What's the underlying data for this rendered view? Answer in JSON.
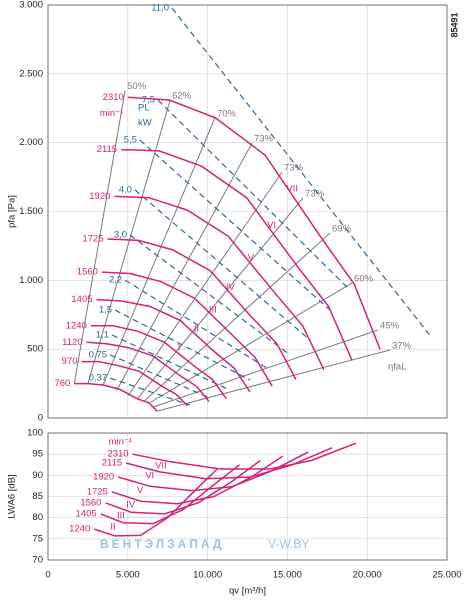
{
  "drawing_number": "85491",
  "watermark": [
    "ВЕНТЭЛЗАПАД",
    "V-W.BY"
  ],
  "chart_data": [
    {
      "type": "line",
      "y_label": "pfa [Pa]",
      "xlim": [
        0,
        25000
      ],
      "ylim": [
        0,
        3000
      ],
      "xticks": [
        0,
        5000,
        10000,
        15000,
        20000,
        25000
      ],
      "yticks": [
        0,
        500,
        {
          "value": 1000,
          "label": "1.000"
        },
        {
          "value": 1500,
          "label": "1.500"
        },
        {
          "value": 2000,
          "label": "2.000"
        },
        {
          "value": 2500,
          "label": "2.500"
        },
        {
          "value": 3000,
          "label": "3.000"
        }
      ],
      "grid": true,
      "speed_unit": "min⁻¹",
      "power_unit": [
        "PL",
        "kW"
      ],
      "efficiency_symbol": "ηfaL",
      "speed_color": "#d4217b",
      "power_color": "#2d6a96",
      "efficiency_color": "#7a7a7a",
      "series": [
        {
          "name": "2310",
          "mark": "VII",
          "x": [
            5000,
            7600,
            10500,
            13600,
            17000,
            19200,
            20800
          ],
          "values": [
            2330,
            2310,
            2180,
            1910,
            1330,
            970,
            500
          ]
        },
        {
          "name": "2115",
          "mark": "VI",
          "x": [
            4580,
            6960,
            9610,
            12450,
            15570,
            17580,
            19040
          ],
          "values": [
            1950,
            1940,
            1830,
            1600,
            1110,
            810,
            420
          ]
        },
        {
          "name": "1920",
          "mark": "V",
          "x": [
            4160,
            6320,
            8730,
            11300,
            14130,
            15960,
            17290
          ],
          "values": [
            1610,
            1600,
            1510,
            1320,
            920,
            670,
            350
          ]
        },
        {
          "name": "1725",
          "mark": "IV",
          "x": [
            3730,
            5680,
            7840,
            10160,
            12700,
            14340,
            15530
          ],
          "values": [
            1300,
            1290,
            1220,
            1070,
            740,
            540,
            280
          ]
        },
        {
          "name": "1560",
          "mark": "III",
          "x": [
            3380,
            5130,
            7090,
            9180,
            11480,
            12970,
            14050
          ],
          "values": [
            1060,
            1050,
            990,
            870,
            610,
            440,
            230
          ]
        },
        {
          "name": "1405",
          "mark": "II",
          "x": [
            3040,
            4620,
            6390,
            8270,
            10340,
            11680,
            12650
          ],
          "values": [
            860,
            850,
            810,
            710,
            490,
            360,
            190
          ]
        },
        {
          "name": "1240",
          "mark": "I",
          "x": [
            2680,
            4080,
            5640,
            7300,
            9130,
            10310,
            11170
          ],
          "values": [
            670,
            670,
            630,
            550,
            380,
            280,
            140
          ]
        },
        {
          "name": "1120",
          "x": [
            2420,
            3680,
            5090,
            6590,
            8240,
            9310,
            10080
          ],
          "values": [
            550,
            540,
            510,
            450,
            310,
            230,
            120
          ]
        },
        {
          "name": "970",
          "x": [
            2100,
            3190,
            4410,
            5710,
            7140,
            8060,
            8730
          ],
          "values": [
            410,
            410,
            380,
            340,
            230,
            170,
            90
          ]
        },
        {
          "name": "760",
          "x": [
            1650,
            2500,
            3450,
            4470,
            5590,
            6320,
            6840
          ],
          "values": [
            250,
            250,
            240,
            210,
            140,
            110,
            50
          ]
        }
      ],
      "power_lines": [
        {
          "name": "11,0",
          "x": [
            7770,
            24060
          ],
          "values": [
            2977,
            581
          ]
        },
        {
          "name": "7,5",
          "x": [
            6890,
            18920
          ],
          "values": [
            2309,
            930
          ]
        },
        {
          "name": "5,5",
          "x": [
            5760,
            17670
          ],
          "values": [
            2019,
            784
          ]
        },
        {
          "name": "4,0",
          "x": [
            5450,
            16420
          ],
          "values": [
            1656,
            566
          ]
        },
        {
          "name": "3,0",
          "x": [
            5140,
            15160
          ],
          "values": [
            1329,
            458
          ]
        },
        {
          "name": "2,2",
          "x": [
            4830,
            13910
          ],
          "values": [
            1002,
            349
          ]
        },
        {
          "name": "1,5",
          "x": [
            4200,
            12660
          ],
          "values": [
            784,
            276
          ]
        },
        {
          "name": "1,1",
          "x": [
            4010,
            11400
          ],
          "values": [
            603,
            203
          ]
        },
        {
          "name": "0,75",
          "x": [
            3890,
            10150
          ],
          "values": [
            458,
            145
          ]
        },
        {
          "name": "0,37",
          "x": [
            3890,
            8900
          ],
          "values": [
            290,
            94
          ]
        }
      ],
      "efficiency_lines": [
        {
          "name": "50%",
          "x": [
            1650,
            4830
          ],
          "values": [
            250,
            2380
          ]
        },
        {
          "name": "62%",
          "x": [
            2500,
            7650
          ],
          "values": [
            250,
            2310
          ]
        },
        {
          "name": "70%",
          "x": [
            3450,
            10460
          ],
          "values": [
            240,
            2180
          ]
        },
        {
          "name": "73%",
          "x": [
            4300,
            12780
          ],
          "values": [
            200,
            1997
          ]
        },
        {
          "name": "73%",
          "x": [
            5000,
            14660
          ],
          "values": [
            160,
            1786
          ]
        },
        {
          "name": "73%",
          "x": [
            5600,
            15980
          ],
          "values": [
            140,
            1598
          ]
        },
        {
          "name": "69%",
          "x": [
            6000,
            17670
          ],
          "values": [
            120,
            1343
          ]
        },
        {
          "name": "60%",
          "x": [
            6300,
            19050
          ],
          "values": [
            105,
            980
          ]
        },
        {
          "name": "45%",
          "x": [
            6600,
            20680
          ],
          "values": [
            80,
            639
          ]
        },
        {
          "name": "37%",
          "x": [
            6840,
            21430
          ],
          "values": [
            50,
            494
          ]
        }
      ]
    },
    {
      "type": "line",
      "y_label": "LWA6 [dB]",
      "x_label": "qv [m³/h]",
      "xlim": [
        0,
        25000
      ],
      "ylim": [
        70,
        100
      ],
      "xticks": [
        0,
        {
          "value": 5000,
          "label": "5.000"
        },
        {
          "value": 10000,
          "label": "10.000"
        },
        {
          "value": 15000,
          "label": "15.000"
        },
        {
          "value": 20000,
          "label": "20.000"
        },
        {
          "value": 25000,
          "label": "25.000"
        }
      ],
      "yticks": [
        70,
        75,
        80,
        85,
        90,
        95,
        100
      ],
      "grid": true,
      "speed_unit": "min⁻¹",
      "speed_color": "#d4217b",
      "series": [
        {
          "name": "2310",
          "mark": "VII",
          "x": [
            5300,
            7700,
            10800,
            13900,
            16500,
            19300
          ],
          "values": [
            95,
            93.2,
            91.5,
            91.5,
            93.5,
            97.6
          ]
        },
        {
          "name": "2115",
          "mark": "VI",
          "x": [
            4900,
            7000,
            9900,
            12700,
            15300,
            17800
          ],
          "values": [
            92.9,
            90.8,
            89.2,
            89.6,
            92.5,
            96.5
          ]
        },
        {
          "name": "1920",
          "mark": "V",
          "x": [
            4400,
            6400,
            9000,
            11500,
            14000,
            16300
          ],
          "values": [
            89.6,
            87.4,
            86.4,
            87.3,
            91,
            95.5
          ]
        },
        {
          "name": "1725",
          "mark": "IV",
          "x": [
            4000,
            5800,
            8100,
            10400,
            12700,
            14700
          ],
          "values": [
            86.1,
            83.9,
            83.3,
            85,
            89.5,
            94.5
          ]
        },
        {
          "name": "1560",
          "mark": "III",
          "x": [
            3600,
            5200,
            7300,
            9400,
            11500,
            13300
          ],
          "values": [
            83.5,
            81.3,
            80.9,
            83.5,
            88.5,
            93.5
          ]
        },
        {
          "name": "1405",
          "mark": "II",
          "x": [
            3300,
            4700,
            6600,
            8500,
            10300,
            12000
          ],
          "values": [
            80.9,
            78.8,
            78.6,
            82,
            87.5,
            92.5
          ]
        },
        {
          "name": "1240",
          "x": [
            2900,
            4200,
            5800,
            7500,
            9100,
            10600
          ],
          "values": [
            77.3,
            75.7,
            75.8,
            80,
            86,
            91.5
          ]
        }
      ]
    }
  ]
}
